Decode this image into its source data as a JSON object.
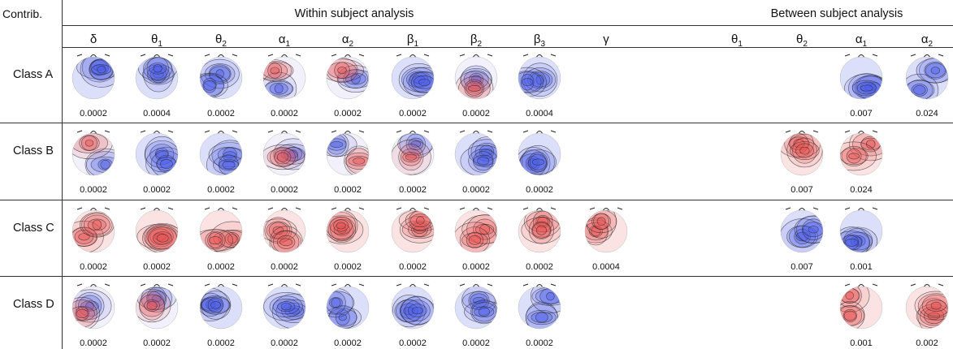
{
  "header": {
    "corner": "Contrib.",
    "within_title": "Within subject analysis",
    "between_title": "Between subject analysis"
  },
  "within_columns": [
    {
      "sym": "δ",
      "sub": ""
    },
    {
      "sym": "θ",
      "sub": "1"
    },
    {
      "sym": "θ",
      "sub": "2"
    },
    {
      "sym": "α",
      "sub": "1"
    },
    {
      "sym": "α",
      "sub": "2"
    },
    {
      "sym": "β",
      "sub": "1"
    },
    {
      "sym": "β",
      "sub": "2"
    },
    {
      "sym": "β",
      "sub": "3"
    },
    {
      "sym": "γ",
      "sub": ""
    }
  ],
  "between_columns": [
    {
      "sym": "θ",
      "sub": "1"
    },
    {
      "sym": "θ",
      "sub": "2"
    },
    {
      "sym": "α",
      "sub": "1"
    },
    {
      "sym": "α",
      "sub": "2"
    }
  ],
  "rows": [
    {
      "label": "Class A",
      "within": [
        "0.0002",
        "0.0004",
        "0.0002",
        "0.0002",
        "0.0002",
        "0.0002",
        "0.0002",
        "0.0004",
        ""
      ],
      "between": [
        "",
        "",
        "0.007",
        "0.024"
      ],
      "within_tone": [
        "blue",
        "blue",
        "blue",
        "mixed",
        "mixed",
        "blue",
        "mixed",
        "blue",
        ""
      ],
      "between_tone": [
        "",
        "",
        "blue",
        "blue"
      ]
    },
    {
      "label": "Class B",
      "within": [
        "0.0002",
        "0.0002",
        "0.0002",
        "0.0002",
        "0.0002",
        "0.0002",
        "0.0002",
        "0.0002",
        ""
      ],
      "between": [
        "",
        "0.007",
        "0.024",
        ""
      ],
      "within_tone": [
        "mixed",
        "blue",
        "blue",
        "mixed",
        "mixed",
        "mixed",
        "blue",
        "blue",
        ""
      ],
      "between_tone": [
        "",
        "red",
        "red",
        ""
      ]
    },
    {
      "label": "Class C",
      "within": [
        "0.0002",
        "0.0002",
        "0.0002",
        "0.0002",
        "0.0002",
        "0.0002",
        "0.0002",
        "0.0002",
        "0.0004"
      ],
      "between": [
        "",
        "0.007",
        "0.001",
        ""
      ],
      "within_tone": [
        "red",
        "red",
        "red",
        "red",
        "red",
        "red",
        "red",
        "red",
        "red"
      ],
      "between_tone": [
        "",
        "blue",
        "blue",
        ""
      ]
    },
    {
      "label": "Class D",
      "within": [
        "0.0002",
        "0.0002",
        "0.0002",
        "0.0002",
        "0.0002",
        "0.0002",
        "0.0002",
        "0.0002",
        ""
      ],
      "between": [
        "",
        "",
        "0.001",
        "0.002"
      ],
      "within_tone": [
        "mixed",
        "mixed",
        "blue",
        "blue",
        "blue",
        "blue",
        "blue",
        "blue",
        ""
      ],
      "between_tone": [
        "",
        "",
        "red",
        "red"
      ]
    }
  ],
  "colors": {
    "negative": "#4a5be8",
    "positive": "#e85050",
    "neutral": "#ffffff",
    "contour": "#222222"
  }
}
